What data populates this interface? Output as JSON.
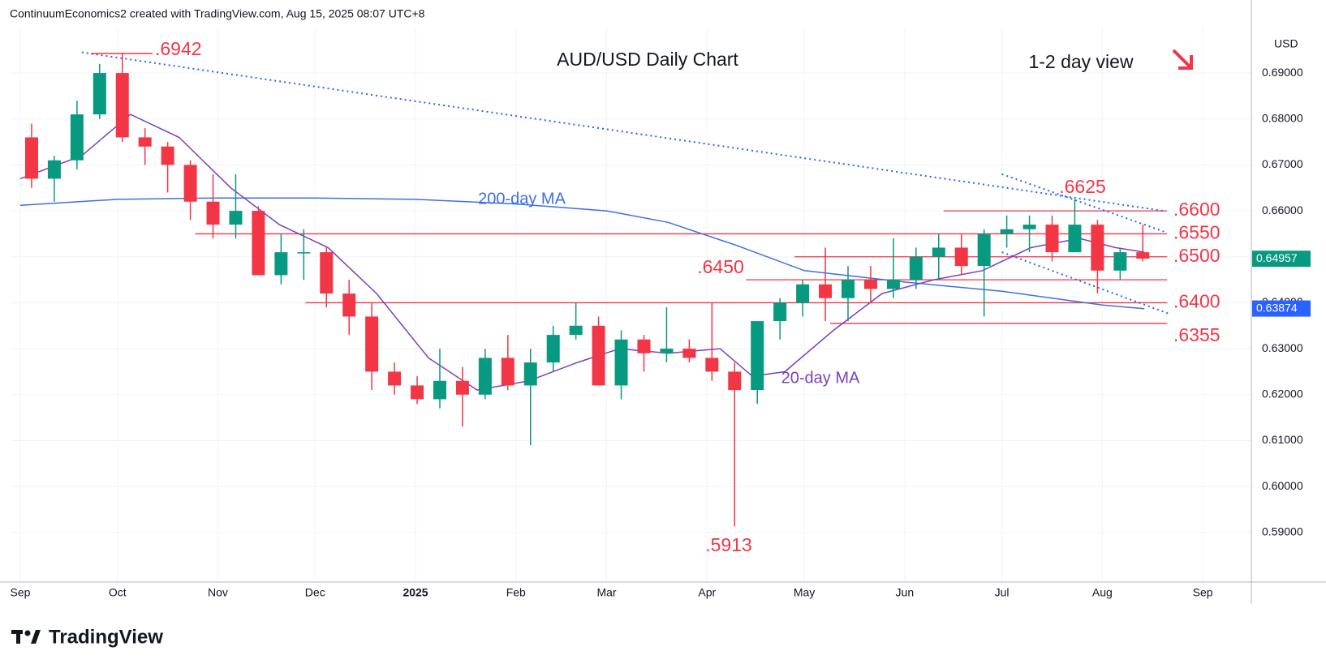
{
  "chart_data": {
    "type": "candlestick",
    "header": "ContinuumEconomics2 created with TradingView.com, Aug 15, 2025 08:07 UTC+8",
    "title": "AUD/USD Daily Chart",
    "subtitle": "1-2 day view",
    "currency": "USD",
    "logo": "TradingView",
    "colors": {
      "up": "#089981",
      "down": "#f23645",
      "level": "#f23645",
      "trend": "#2962ff"
    },
    "xlim": [
      "2024-08-29",
      "2025-09-16"
    ],
    "xticks": [
      {
        "value": "2024-09-01",
        "label": "Sep"
      },
      {
        "value": "2024-10-01",
        "label": "Oct"
      },
      {
        "value": "2024-11-01",
        "label": "Nov"
      },
      {
        "value": "2024-12-01",
        "label": "Dec"
      },
      {
        "value": "2025-01-01",
        "label": "2025"
      },
      {
        "value": "2025-02-01",
        "label": "Feb"
      },
      {
        "value": "2025-03-01",
        "label": "Mar"
      },
      {
        "value": "2025-04-01",
        "label": "Apr"
      },
      {
        "value": "2025-05-01",
        "label": "May"
      },
      {
        "value": "2025-06-01",
        "label": "Jun"
      },
      {
        "value": "2025-07-01",
        "label": "Jul"
      },
      {
        "value": "2025-08-01",
        "label": "Aug"
      },
      {
        "value": "2025-09-01",
        "label": "Sep"
      }
    ],
    "ylim": [
      0.5792,
      0.6999
    ],
    "yticks": [
      {
        "value": 0.59,
        "label": "0.59000"
      },
      {
        "value": 0.6,
        "label": "0.60000"
      },
      {
        "value": 0.61,
        "label": "0.61000"
      },
      {
        "value": 0.62,
        "label": "0.62000"
      },
      {
        "value": 0.63,
        "label": "0.63000"
      },
      {
        "value": 0.64,
        "label": "0.64000"
      },
      {
        "value": 0.65,
        "label": "0.65000"
      },
      {
        "value": 0.66,
        "label": "0.66000"
      },
      {
        "value": 0.67,
        "label": "0.67000"
      },
      {
        "value": 0.68,
        "label": "0.68000"
      },
      {
        "value": 0.69,
        "label": "0.69000"
      }
    ],
    "grid": true,
    "candles": {
      "x": [
        "2024-09-02",
        "2024-09-09",
        "2024-09-16",
        "2024-09-23",
        "2024-09-30",
        "2024-10-07",
        "2024-10-14",
        "2024-10-21",
        "2024-10-28",
        "2024-11-04",
        "2024-11-11",
        "2024-11-18",
        "2024-11-25",
        "2024-12-02",
        "2024-12-09",
        "2024-12-16",
        "2024-12-23",
        "2024-12-30",
        "2025-01-06",
        "2025-01-13",
        "2025-01-20",
        "2025-01-27",
        "2025-02-03",
        "2025-02-10",
        "2025-02-17",
        "2025-02-24",
        "2025-03-03",
        "2025-03-10",
        "2025-03-17",
        "2025-03-24",
        "2025-03-31",
        "2025-04-07",
        "2025-04-14",
        "2025-04-21",
        "2025-04-28",
        "2025-05-05",
        "2025-05-12",
        "2025-05-19",
        "2025-05-26",
        "2025-06-02",
        "2025-06-09",
        "2025-06-16",
        "2025-06-23",
        "2025-06-30",
        "2025-07-07",
        "2025-07-14",
        "2025-07-21",
        "2025-07-28",
        "2025-08-04",
        "2025-08-11"
      ],
      "open": [
        0.676,
        0.667,
        0.671,
        0.681,
        0.69,
        0.676,
        0.674,
        0.67,
        0.662,
        0.657,
        0.66,
        0.646,
        0.651,
        0.651,
        0.642,
        0.637,
        0.625,
        0.622,
        0.619,
        0.623,
        0.62,
        0.628,
        0.622,
        0.627,
        0.633,
        0.635,
        0.622,
        0.632,
        0.629,
        0.63,
        0.628,
        0.625,
        0.621,
        0.636,
        0.64,
        0.644,
        0.641,
        0.645,
        0.643,
        0.645,
        0.65,
        0.652,
        0.648,
        0.655,
        0.656,
        0.657,
        0.651,
        0.657,
        0.647,
        0.651
      ],
      "high": [
        0.679,
        0.672,
        0.684,
        0.692,
        0.6942,
        0.678,
        0.675,
        0.671,
        0.668,
        0.668,
        0.661,
        0.655,
        0.656,
        0.652,
        0.645,
        0.64,
        0.627,
        0.624,
        0.63,
        0.626,
        0.63,
        0.633,
        0.63,
        0.635,
        0.64,
        0.637,
        0.634,
        0.633,
        0.639,
        0.632,
        0.64,
        0.627,
        0.636,
        0.641,
        0.645,
        0.652,
        0.648,
        0.648,
        0.654,
        0.652,
        0.655,
        0.655,
        0.656,
        0.659,
        0.659,
        0.659,
        0.6625,
        0.658,
        0.652,
        0.657
      ],
      "low": [
        0.665,
        0.662,
        0.669,
        0.68,
        0.675,
        0.67,
        0.664,
        0.658,
        0.654,
        0.654,
        0.646,
        0.644,
        0.645,
        0.639,
        0.633,
        0.621,
        0.62,
        0.618,
        0.617,
        0.613,
        0.619,
        0.621,
        0.609,
        0.625,
        0.632,
        0.622,
        0.619,
        0.625,
        0.627,
        0.627,
        0.623,
        0.5913,
        0.618,
        0.632,
        0.637,
        0.636,
        0.636,
        0.64,
        0.641,
        0.643,
        0.645,
        0.646,
        0.637,
        0.652,
        0.651,
        0.649,
        0.651,
        0.642,
        0.645,
        0.649
      ],
      "close": [
        0.667,
        0.671,
        0.681,
        0.69,
        0.676,
        0.674,
        0.67,
        0.662,
        0.657,
        0.66,
        0.646,
        0.651,
        0.651,
        0.642,
        0.637,
        0.625,
        0.622,
        0.619,
        0.623,
        0.62,
        0.628,
        0.622,
        0.627,
        0.633,
        0.635,
        0.622,
        0.632,
        0.629,
        0.63,
        0.628,
        0.625,
        0.621,
        0.636,
        0.64,
        0.644,
        0.641,
        0.645,
        0.643,
        0.645,
        0.65,
        0.652,
        0.648,
        0.655,
        0.656,
        0.657,
        0.651,
        0.657,
        0.647,
        0.651,
        0.6496
      ]
    },
    "series": [
      {
        "name": "200-day MA",
        "color": "#3d6fe3",
        "x": [
          "2024-09-01",
          "2024-10-01",
          "2024-11-01",
          "2024-12-01",
          "2025-01-01",
          "2025-02-01",
          "2025-03-01",
          "2025-03-20",
          "2025-04-10",
          "2025-05-01",
          "2025-06-01",
          "2025-07-01",
          "2025-08-01",
          "2025-08-14"
        ],
        "values": [
          0.6612,
          0.6625,
          0.6628,
          0.6628,
          0.6625,
          0.6615,
          0.66,
          0.6575,
          0.6525,
          0.647,
          0.6445,
          0.6425,
          0.6395,
          0.6387
        ]
      },
      {
        "name": "20-day MA",
        "color": "#7b3fbf",
        "x": [
          "2024-09-01",
          "2024-09-20",
          "2024-10-05",
          "2024-10-20",
          "2024-11-05",
          "2024-11-20",
          "2024-12-05",
          "2024-12-20",
          "2025-01-05",
          "2025-01-20",
          "2025-02-05",
          "2025-02-20",
          "2025-03-05",
          "2025-03-20",
          "2025-04-05",
          "2025-04-15",
          "2025-04-25",
          "2025-05-10",
          "2025-05-25",
          "2025-06-10",
          "2025-06-25",
          "2025-07-10",
          "2025-07-25",
          "2025-08-05",
          "2025-08-14"
        ],
        "values": [
          0.667,
          0.672,
          0.681,
          0.676,
          0.665,
          0.657,
          0.652,
          0.642,
          0.628,
          0.621,
          0.623,
          0.627,
          0.63,
          0.629,
          0.63,
          0.624,
          0.625,
          0.634,
          0.642,
          0.645,
          0.647,
          0.652,
          0.654,
          0.652,
          0.651
        ]
      }
    ],
    "levels": [
      {
        "value": 0.66,
        "label": ".6600",
        "from": "2025-06-13",
        "to": "2025-08-21"
      },
      {
        "value": 0.655,
        "label": ".6550",
        "from": "2024-10-25",
        "to": "2025-08-21"
      },
      {
        "value": 0.65,
        "label": ".6500",
        "from": "2025-04-28",
        "to": "2025-08-21"
      },
      {
        "value": 0.645,
        "label": ".6450",
        "from": "2025-04-13",
        "to": "2025-08-21"
      },
      {
        "value": 0.64,
        "label": ".6400",
        "from": "2024-11-28",
        "to": "2025-08-21"
      },
      {
        "value": 0.6355,
        "label": ".6355",
        "from": "2025-05-09",
        "to": "2025-08-21"
      }
    ],
    "trendlines": [
      {
        "x": [
          "2024-09-20",
          "2025-08-20"
        ],
        "y": [
          0.6945,
          0.66
        ]
      },
      {
        "x": [
          "2025-07-01",
          "2025-08-20"
        ],
        "y": [
          0.668,
          0.6555
        ]
      },
      {
        "x": [
          "2025-07-01",
          "2025-08-22"
        ],
        "y": [
          0.651,
          0.6375
        ]
      }
    ],
    "annotations": [
      ".6942",
      ".5913",
      ".6625"
    ],
    "price_labels": [
      {
        "value": 0.64957,
        "color": "#089981"
      },
      {
        "value": 0.63874,
        "color": "#2962ff"
      }
    ]
  }
}
